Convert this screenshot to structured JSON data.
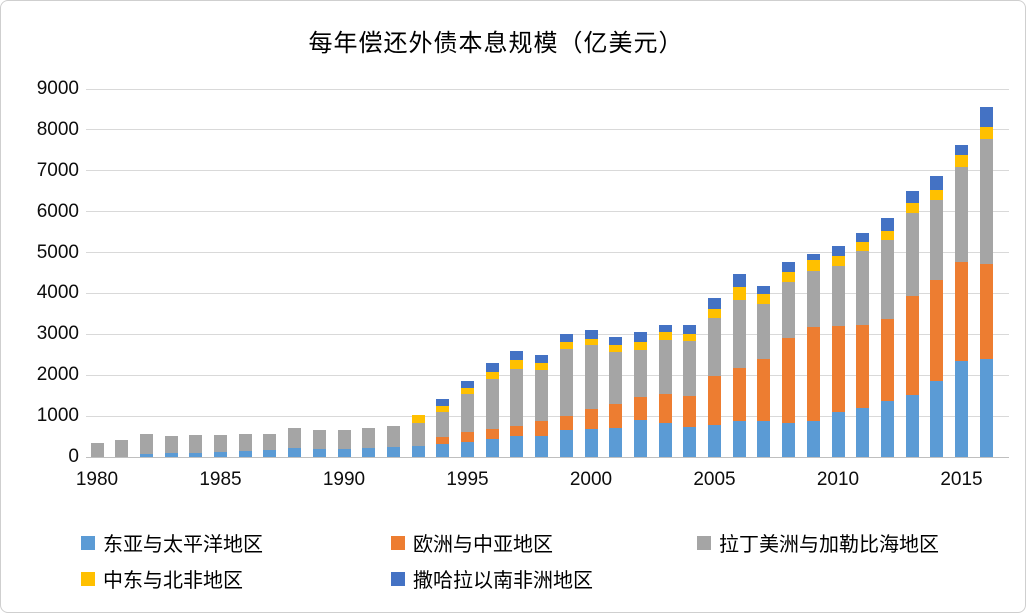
{
  "title": "每年偿还外债本息规模（亿美元）",
  "chart_data": {
    "type": "bar",
    "stacked": true,
    "unit": "亿美元",
    "title": "每年偿还外债本息规模（亿美元）",
    "categories": [
      1980,
      1981,
      1982,
      1983,
      1984,
      1985,
      1986,
      1987,
      1988,
      1989,
      1990,
      1991,
      1992,
      1993,
      1994,
      1995,
      1996,
      1997,
      1998,
      1999,
      2000,
      2001,
      2002,
      2003,
      2004,
      2005,
      2006,
      2007,
      2008,
      2009,
      2010,
      2011,
      2012,
      2013,
      2014,
      2015,
      2016
    ],
    "series": [
      {
        "name": "东亚与太平洋地区",
        "color": "#5B9BD5",
        "values": [
          0,
          0,
          80,
          90,
          110,
          130,
          140,
          160,
          210,
          190,
          200,
          210,
          240,
          280,
          320,
          360,
          450,
          520,
          520,
          660,
          680,
          720,
          910,
          840,
          730,
          780,
          870,
          890,
          820,
          890,
          1090,
          1190,
          1380,
          1510,
          1850,
          2350,
          2390
        ]
      },
      {
        "name": "欧洲与中亚地区",
        "color": "#ED7D31",
        "values": [
          0,
          0,
          0,
          0,
          0,
          0,
          0,
          0,
          0,
          0,
          0,
          0,
          0,
          0,
          160,
          250,
          240,
          250,
          370,
          350,
          500,
          580,
          560,
          710,
          760,
          1210,
          1310,
          1500,
          2100,
          2290,
          2110,
          2040,
          1990,
          2420,
          2490,
          2420,
          2330
        ]
      },
      {
        "name": "拉丁美洲与加勒比海地区",
        "color": "#A5A5A5",
        "values": [
          340,
          410,
          490,
          430,
          420,
          410,
          420,
          410,
          510,
          480,
          450,
          490,
          520,
          540,
          630,
          930,
          1230,
          1390,
          1230,
          1620,
          1550,
          1270,
          1150,
          1310,
          1340,
          1400,
          1650,
          1350,
          1360,
          1380,
          1470,
          1810,
          1950,
          2040,
          1950,
          2330,
          3050
        ]
      },
      {
        "name": "中东与北非地区",
        "color": "#FFC000",
        "values": [
          0,
          0,
          0,
          0,
          0,
          0,
          0,
          0,
          0,
          0,
          0,
          0,
          0,
          220,
          150,
          150,
          160,
          210,
          190,
          180,
          160,
          170,
          200,
          190,
          180,
          240,
          320,
          250,
          250,
          250,
          240,
          210,
          220,
          250,
          250,
          280,
          290
        ]
      },
      {
        "name": "撒哈拉以南非洲地区",
        "color": "#4472C4",
        "values": [
          0,
          0,
          0,
          0,
          0,
          0,
          0,
          0,
          0,
          0,
          0,
          0,
          0,
          0,
          150,
          160,
          210,
          220,
          190,
          190,
          210,
          200,
          250,
          190,
          220,
          250,
          330,
          200,
          250,
          160,
          240,
          220,
          300,
          280,
          340,
          260,
          500
        ]
      }
    ],
    "ylim": [
      0,
      9000
    ],
    "ytick_interval": 1000,
    "y_tick_labels": [
      "0",
      "1000",
      "2000",
      "3000",
      "4000",
      "5000",
      "6000",
      "7000",
      "8000",
      "9000"
    ],
    "x_tick_labels": [
      "1980",
      "1985",
      "1990",
      "1995",
      "2000",
      "2005",
      "2010",
      "2015"
    ],
    "grid": "horizontal",
    "legend_position": "bottom"
  },
  "colors": {
    "gridline": "#D9D9D9",
    "axis_line": "#BFBFBF",
    "text": "#000000"
  }
}
